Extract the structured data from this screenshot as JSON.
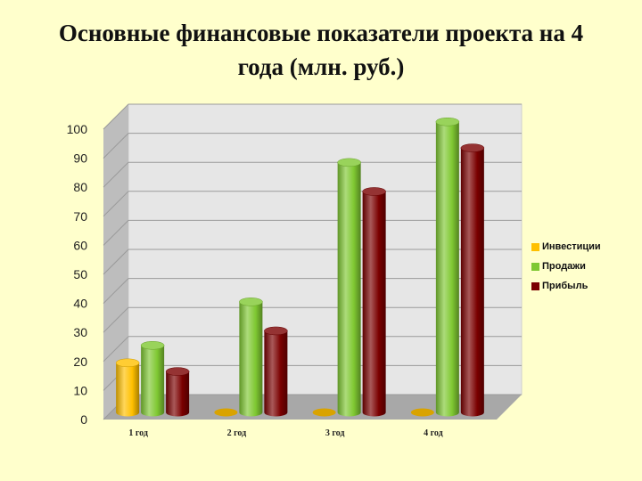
{
  "slide": {
    "title_line1": "Основные финансовые показатели проекта на 4",
    "title_line2": "года (млн. руб.)"
  },
  "chart_data": {
    "type": "bar",
    "style": "3d-cylinder",
    "categories": [
      "1 год",
      "2 год",
      "3  год",
      "4 год"
    ],
    "series": [
      {
        "name": "Инвестиции",
        "color": "#ffc000",
        "values": [
          18,
          0,
          0,
          0
        ]
      },
      {
        "name": "Продажи",
        "color": "#7fc832",
        "values": [
          24,
          39,
          87,
          101
        ]
      },
      {
        "name": "Прибыль",
        "color": "#7a0000",
        "values": [
          15,
          29,
          77,
          92
        ]
      }
    ],
    "ylim": [
      0,
      100
    ],
    "yticks": [
      0,
      10,
      20,
      30,
      40,
      50,
      60,
      70,
      80,
      90,
      100
    ],
    "grid": true,
    "legend_position": "right",
    "title": "",
    "xlabel": "",
    "ylabel": ""
  }
}
